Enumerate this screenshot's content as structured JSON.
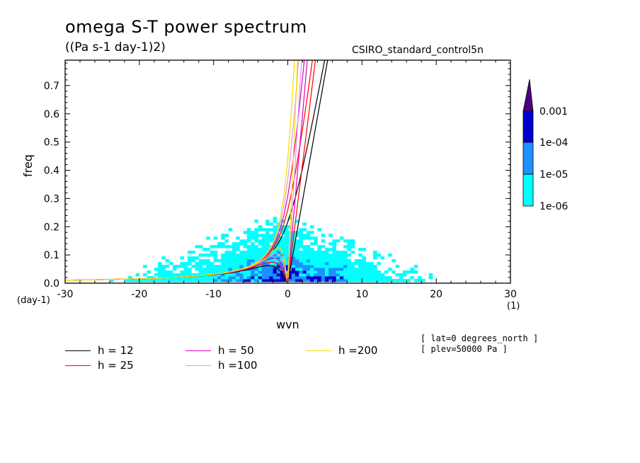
{
  "chart_data": {
    "type": "heatmap",
    "title": "omega S-T power spectrum",
    "units": "((Pa s-1 day-1)2)",
    "dataset": "CSIRO_standard_control5n",
    "xlabel": "wvn",
    "ylabel": "freq",
    "x_unit": "(1)",
    "y_unit": "(day-1)",
    "xlim": [
      -30,
      30
    ],
    "ylim": [
      0,
      0.79
    ],
    "x_ticks": [
      "-30",
      "-20",
      "-10",
      "0",
      "10",
      "20",
      "30"
    ],
    "y_ticks": [
      "0.0",
      "0.1",
      "0.2",
      "0.3",
      "0.4",
      "0.5",
      "0.6",
      "0.7"
    ],
    "colorbar": {
      "labels": [
        "0.001",
        "1e-04",
        "1e-05",
        "1e-06"
      ],
      "levels": [
        1e-06,
        1e-05,
        0.0001,
        0.001
      ],
      "colors": [
        "#00ffff",
        "#1e90ff",
        "#0000cd",
        "#4b0082"
      ]
    },
    "dispersion_curves": [
      {
        "name": "h = 12",
        "h": 12,
        "color": "#000000"
      },
      {
        "name": "h = 25",
        "h": 25,
        "color": "#ff0000"
      },
      {
        "name": "h = 50",
        "h": 50,
        "color": "#e000c0"
      },
      {
        "name": "h =100",
        "h": 100,
        "color": "#dda0dd"
      },
      {
        "name": "h =200",
        "h": 200,
        "color": "#ffd700"
      }
    ],
    "annotations": [
      "[ lat=0 degrees_north ]",
      "[ plev=50000 Pa ]"
    ]
  }
}
